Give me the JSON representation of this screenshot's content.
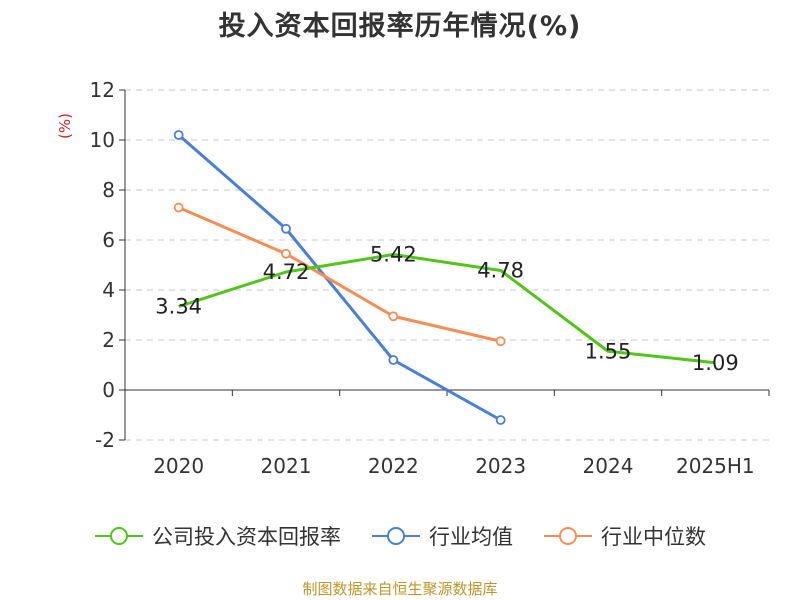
{
  "chart_data": {
    "type": "line",
    "title": "投入资本回报率历年情况(%)",
    "ylabel": "(%)",
    "xlabel": "",
    "categories": [
      "2020",
      "2021",
      "2022",
      "2023",
      "2024",
      "2025H1"
    ],
    "ylim": [
      -2,
      12
    ],
    "yticks": [
      -2,
      0,
      2,
      4,
      6,
      8,
      10,
      12
    ],
    "grid": true,
    "legend_position": "bottom",
    "series": [
      {
        "name": "公司投入资本回报率",
        "color": "#52c41a",
        "values": [
          3.34,
          4.72,
          5.42,
          4.78,
          1.55,
          1.09
        ],
        "labels": [
          "3.34",
          "4.72",
          "5.42",
          "4.78",
          "1.55",
          "1.09"
        ]
      },
      {
        "name": "行业均值",
        "color": "#4a7fd8",
        "values": [
          10.2,
          6.45,
          1.2,
          -1.2,
          null,
          null
        ]
      },
      {
        "name": "行业中位数",
        "color": "#f58d55",
        "values": [
          7.3,
          5.45,
          2.95,
          1.95,
          null,
          null
        ]
      }
    ]
  },
  "source": "制图数据来自恒生聚源数据库"
}
